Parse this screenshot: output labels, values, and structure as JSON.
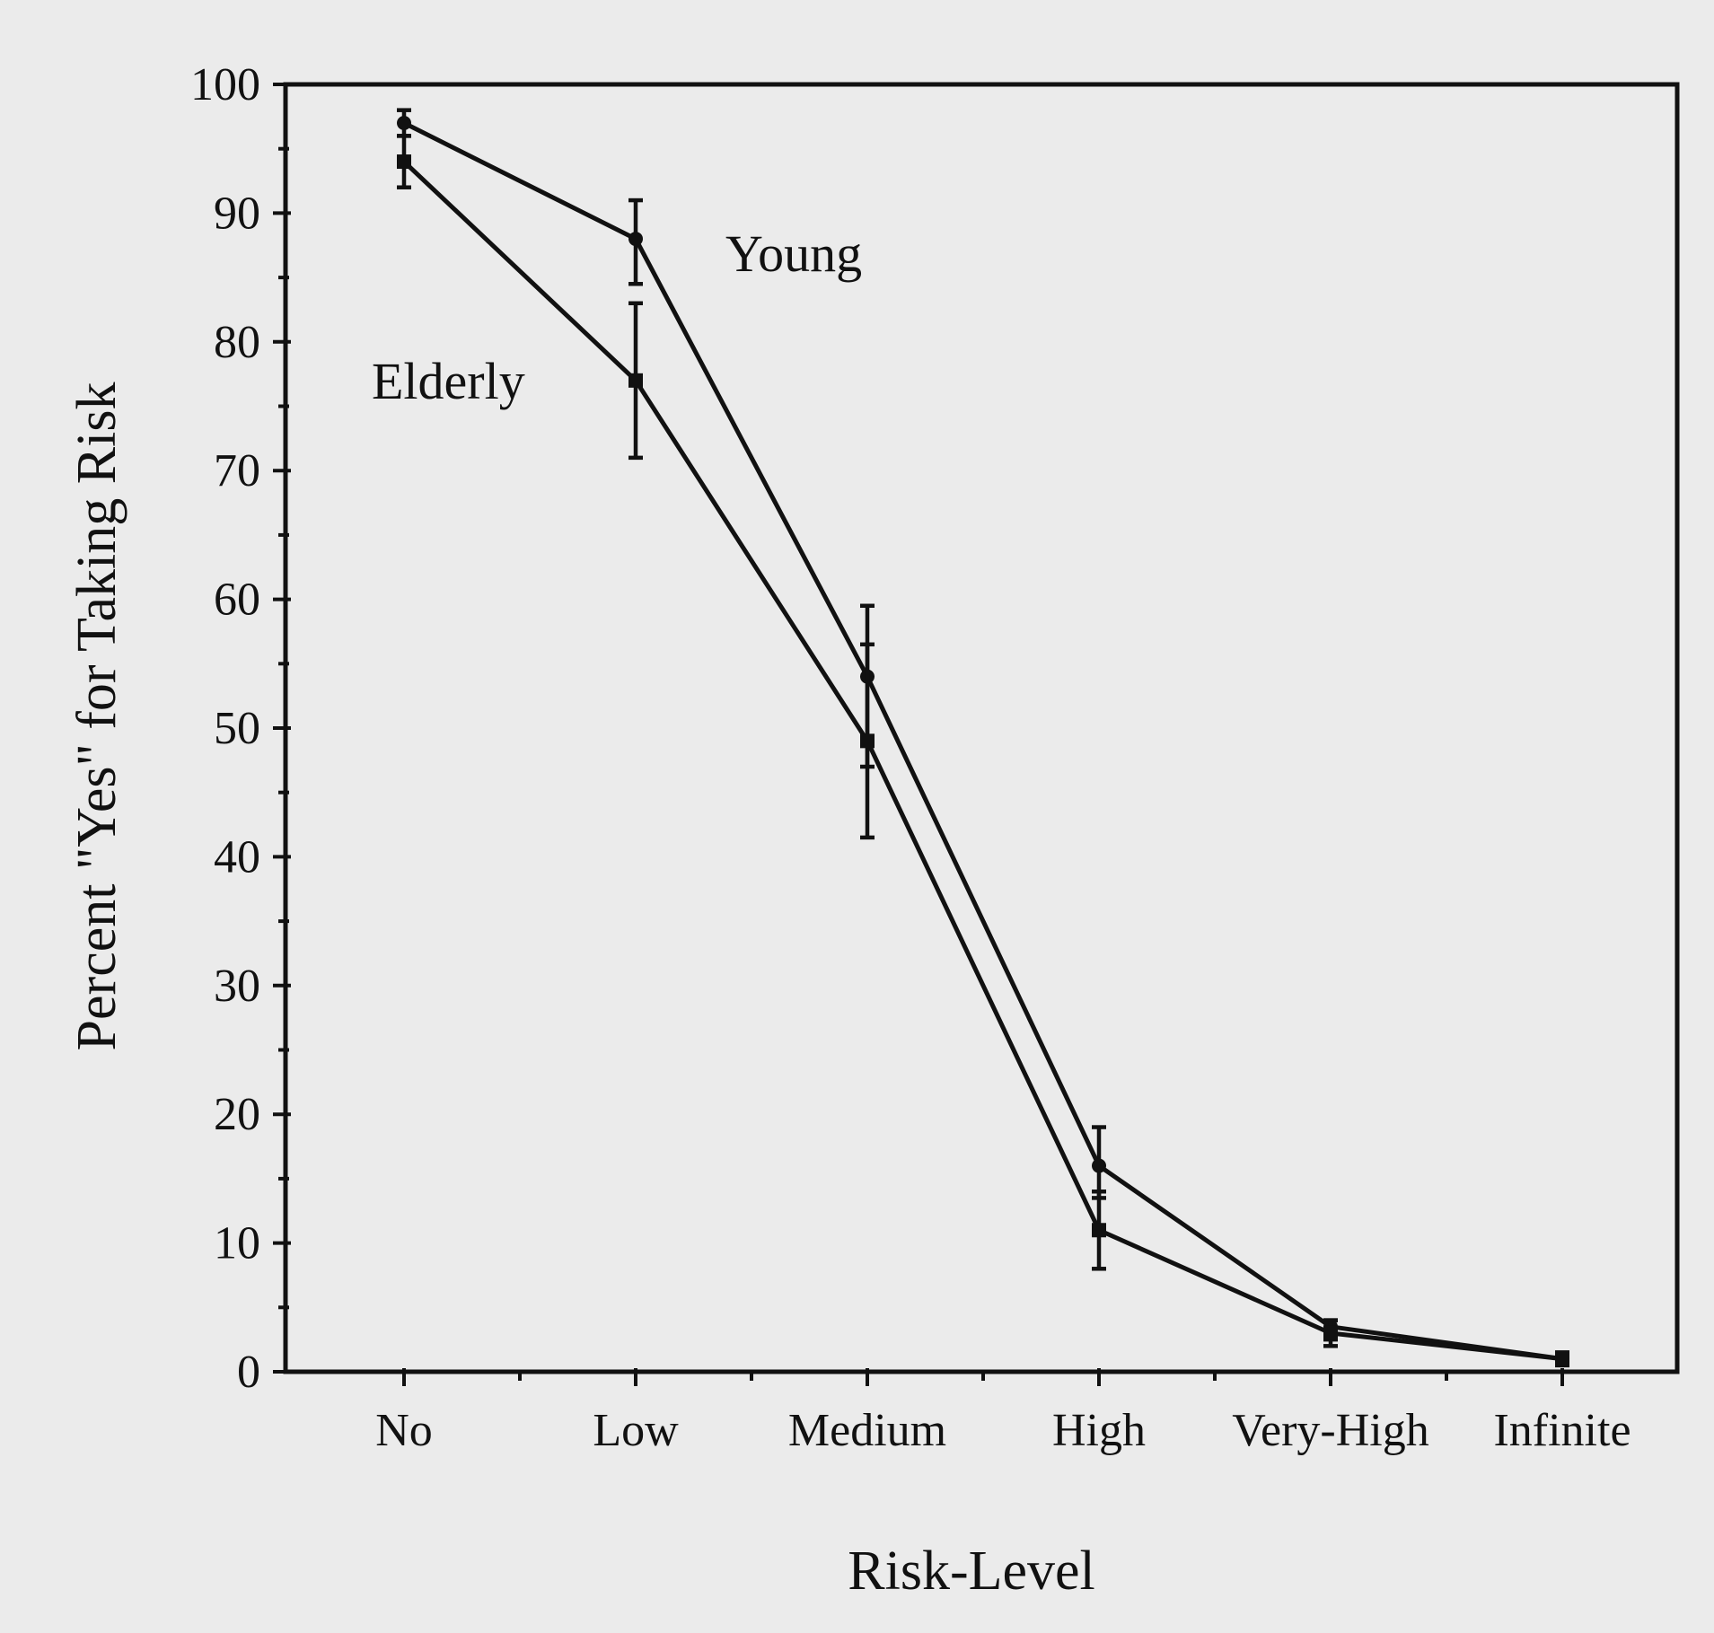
{
  "chart_data": {
    "type": "line",
    "title": "",
    "xlabel": "Risk-Level",
    "ylabel": "Percent \"Yes\" for Taking Risk",
    "categories": [
      "No",
      "Low",
      "Medium",
      "High",
      "Very-High",
      "Infinite"
    ],
    "ylim": [
      0,
      100
    ],
    "yticks": [
      0,
      10,
      20,
      30,
      40,
      50,
      60,
      70,
      80,
      90,
      100
    ],
    "grid": false,
    "legend": "none",
    "series": [
      {
        "name": "Young",
        "values": [
          97,
          88,
          54,
          16,
          3.5,
          1
        ],
        "error_low": [
          96,
          84.5,
          47,
          13.5,
          2.5,
          0.5
        ],
        "error_high": [
          98,
          91,
          59.5,
          19,
          4,
          1.5
        ],
        "marker": "circle"
      },
      {
        "name": "Elderly",
        "values": [
          94,
          77,
          49,
          11,
          3,
          1
        ],
        "error_low": [
          92,
          71,
          41.5,
          8,
          2,
          0.5
        ],
        "error_high": [
          96,
          83,
          56.5,
          14,
          4,
          1.5
        ],
        "marker": "square"
      }
    ]
  }
}
